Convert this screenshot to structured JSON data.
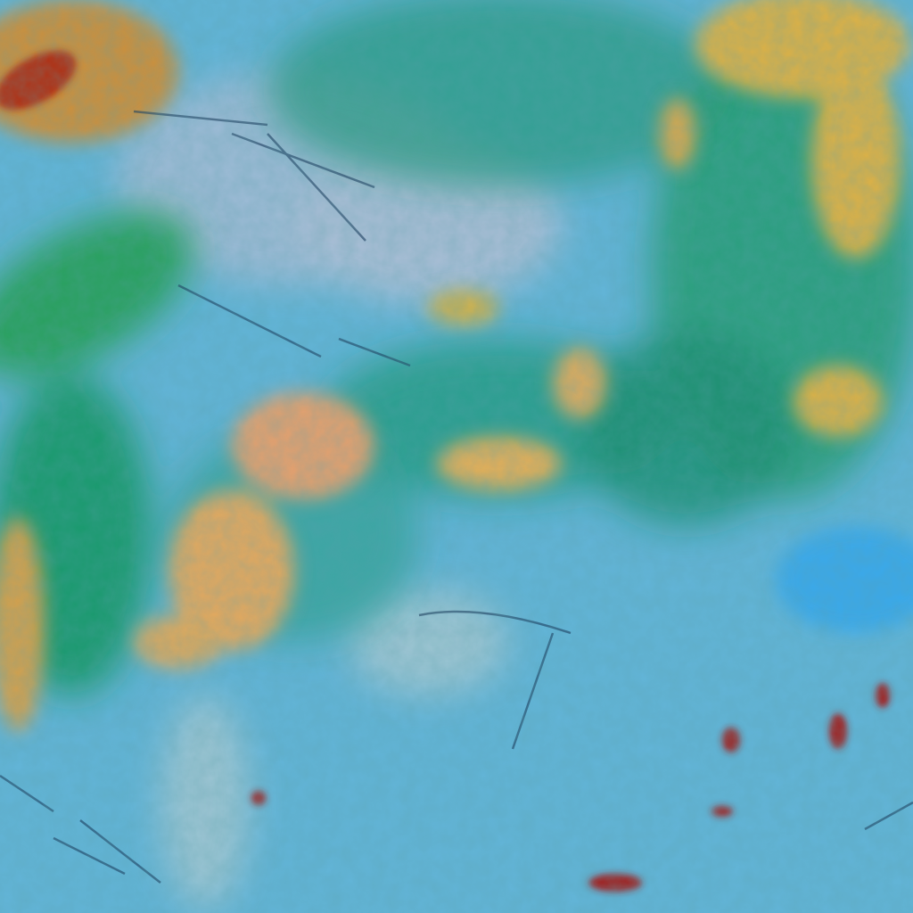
{
  "image": {
    "kind": "false-color satellite cloud imagery",
    "palette": {
      "clear_surface": "#5fb6d8",
      "thin_cloud": "#8fb8d8",
      "pale_cloud": "#b8c4d8",
      "mid_cloud": "#1f9a7a",
      "green_cloud": "#2fb060",
      "high_cloud": "#d9b04a",
      "warm_cloud": "#e0a060",
      "deep_convection": "#b02020",
      "bright_clear": "#3aa8e8",
      "shadow_lines": "#1a3a5a"
    }
  }
}
